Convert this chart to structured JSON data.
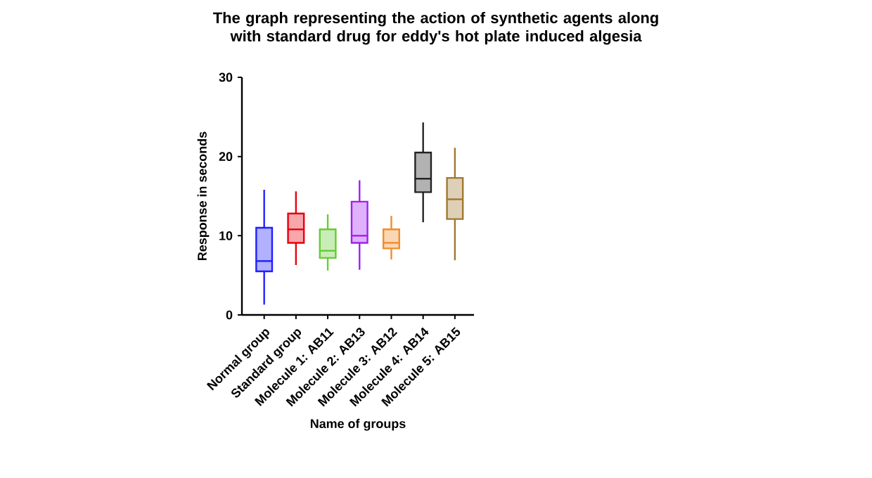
{
  "chart_data": {
    "type": "box",
    "title": "The graph representing the action of synthetic agents along with standard drug for eddy's hot plate induced algesia",
    "xlabel": "Name of groups",
    "ylabel": "Response in seconds",
    "categories": [
      "Normal group",
      "Standard group",
      "Molecule 1: AB11",
      "Molecule 2: AB13",
      "Molecule 3: AB12",
      "Molecule 4: AB14",
      "Molecule 5: AB15"
    ],
    "colors": [
      "#1f1fff",
      "#e8000b",
      "#66cc33",
      "#a020f0",
      "#f28c28",
      "#222222",
      "#a07830"
    ],
    "boxes": [
      {
        "low": 1.3,
        "q1": 5.5,
        "median": 6.8,
        "q3": 11,
        "high": 15.8
      },
      {
        "low": 6.3,
        "q1": 9.1,
        "median": 10.8,
        "q3": 12.8,
        "high": 15.6
      },
      {
        "low": 5.6,
        "q1": 7.2,
        "median": 8.1,
        "q3": 10.8,
        "high": 12.7
      },
      {
        "low": 5.7,
        "q1": 9.1,
        "median": 10,
        "q3": 14.3,
        "high": 17
      },
      {
        "low": 7,
        "q1": 8.4,
        "median": 9.1,
        "q3": 10.8,
        "high": 12.5
      },
      {
        "low": 11.7,
        "q1": 15.5,
        "median": 17.2,
        "q3": 20.5,
        "high": 24.3
      },
      {
        "low": 6.9,
        "q1": 12.1,
        "median": 14.6,
        "q3": 17.3,
        "high": 21.1
      }
    ],
    "ylim": [
      0,
      30
    ],
    "yticks": [
      0,
      10,
      20,
      30
    ]
  }
}
